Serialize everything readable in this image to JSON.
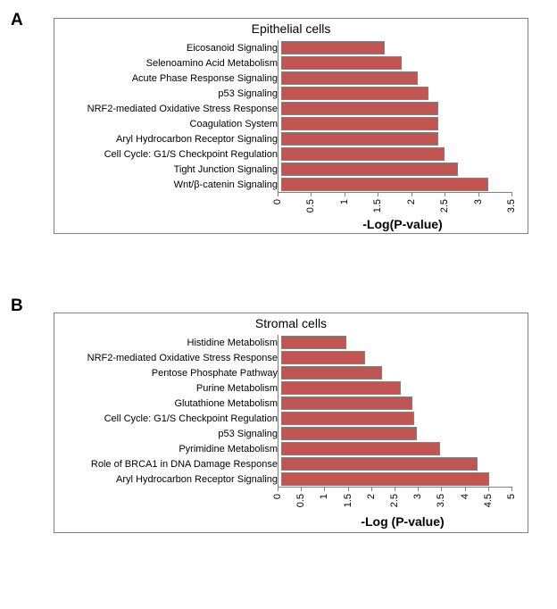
{
  "panelA": {
    "label": "A",
    "chart": {
      "type": "bar-horizontal",
      "title": "Epithelial cells",
      "title_fontsize": 14,
      "xlabel": "-Log(P-value)",
      "xlabel_fontsize": 14,
      "xlim": [
        0,
        3.5
      ],
      "xtick_step": 0.5,
      "xticks": [
        "0",
        "0.5",
        "1",
        "1.5",
        "2",
        "2.5",
        "3",
        "3.5"
      ],
      "bar_color": "#c05551",
      "bar_border": "#808080",
      "background_color": "#ffffff",
      "label_fontsize": 11,
      "categories": [
        "Eicosanoid Signaling",
        "Selenoamino Acid Metabolism",
        "Acute Phase Response Signaling",
        "p53 Signaling",
        "NRF2-mediated Oxidative Stress Response",
        "Coagulation System",
        "Aryl Hydrocarbon Receptor Signaling",
        "Cell Cycle: G1/S Checkpoint Regulation",
        "Tight Junction Signaling",
        "Wnt/β-catenin Signaling"
      ],
      "values": [
        1.55,
        1.8,
        2.05,
        2.2,
        2.35,
        2.35,
        2.35,
        2.45,
        2.65,
        3.1
      ]
    }
  },
  "panelB": {
    "label": "B",
    "chart": {
      "type": "bar-horizontal",
      "title": "Stromal cells",
      "title_fontsize": 14,
      "xlabel": "-Log (P-value)",
      "xlabel_fontsize": 14,
      "xlim": [
        0,
        5.0
      ],
      "xtick_step": 0.5,
      "xticks": [
        "0",
        "0.5",
        "1",
        "1.5",
        "2",
        "2.5",
        "3",
        "3.5",
        "4",
        "4.5",
        "5"
      ],
      "bar_color": "#c05551",
      "bar_border": "#808080",
      "background_color": "#ffffff",
      "label_fontsize": 11,
      "categories": [
        "Histidine Metabolism",
        "NRF2-mediated Oxidative Stress Response",
        "Pentose Phosphate Pathway",
        "Purine Metabolism",
        "Glutathione Metabolism",
        "Cell Cycle: G1/S Checkpoint Regulation",
        "p53 Signaling",
        "Pyrimidine Metabolism",
        "Role of BRCA1 in DNA Damage Response",
        "Aryl Hydrocarbon Receptor Signaling"
      ],
      "values": [
        1.4,
        1.8,
        2.15,
        2.55,
        2.8,
        2.85,
        2.9,
        3.4,
        4.2,
        4.45
      ]
    }
  }
}
